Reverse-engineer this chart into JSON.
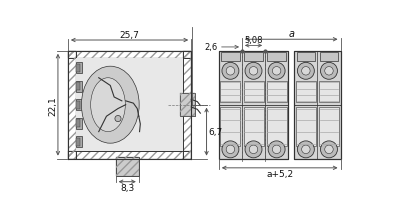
{
  "bg_color": "#ffffff",
  "line_color": "#333333",
  "dim_color": "#555555",
  "fill_gray_light": "#d0d0d0",
  "fill_gray_dark": "#aaaaaa",
  "fill_hatch": "#888888",
  "left_drawing": {
    "dim_25_7": "25,7",
    "dim_22_1": "22,1",
    "dim_6_7": "6,7",
    "dim_8_3": "8,3"
  },
  "right_drawing": {
    "dim_a": "a",
    "dim_2_6": "2,6",
    "dim_5_08": "5,08",
    "dim_a_5_2": "a+5,2"
  }
}
